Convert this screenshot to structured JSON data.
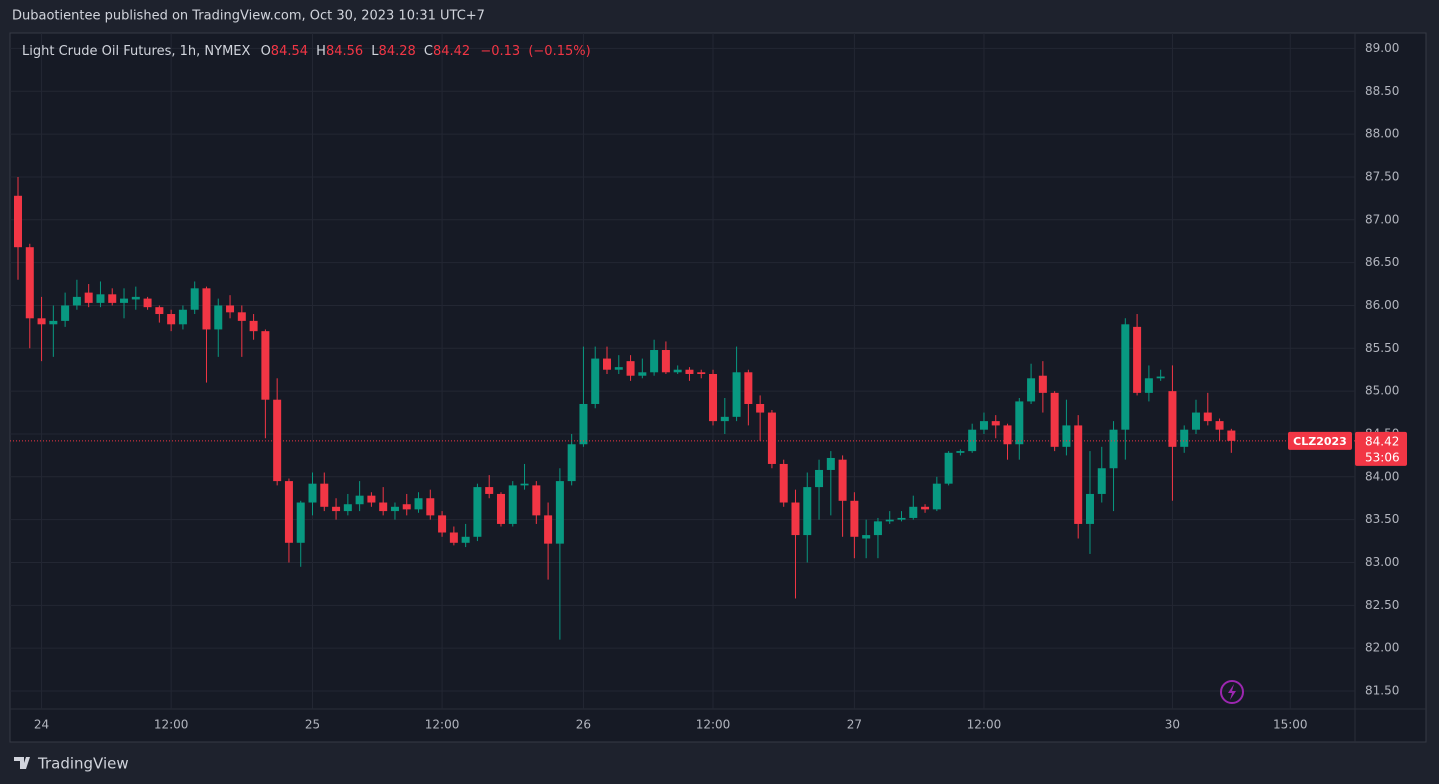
{
  "publisher_line": "Dubaotientee published on TradingView.com, Oct 30, 2023 10:31 UTC+7",
  "footer_brand": "TradingView",
  "chart_data": {
    "type": "candlestick",
    "title": "Light Crude Oil Futures, 1h, NYMEX",
    "header": {
      "open_label": "O",
      "open": 84.54,
      "high_label": "H",
      "high": 84.56,
      "low_label": "L",
      "low": 84.28,
      "close_label": "C",
      "close": 84.42,
      "change": {
        "value": -0.13,
        "label": "−0.13"
      },
      "change_pct": {
        "value": -0.15,
        "label": "(−0.15%)"
      }
    },
    "categories": [
      null,
      null,
      "24",
      null,
      null,
      null,
      null,
      null,
      null,
      null,
      null,
      null,
      null,
      "12:00",
      null,
      null,
      null,
      null,
      null,
      null,
      null,
      null,
      null,
      null,
      null,
      "25",
      null,
      null,
      null,
      null,
      null,
      null,
      null,
      null,
      null,
      null,
      "12:00",
      null,
      null,
      null,
      null,
      null,
      null,
      null,
      null,
      null,
      null,
      null,
      "26",
      null,
      null,
      null,
      null,
      null,
      null,
      null,
      null,
      null,
      null,
      "12:00",
      null,
      null,
      null,
      null,
      null,
      null,
      null,
      null,
      null,
      null,
      null,
      "27",
      null,
      null,
      null,
      null,
      null,
      null,
      null,
      null,
      null,
      null,
      "12:00",
      null,
      null,
      null,
      null,
      null,
      null,
      null,
      null,
      null,
      null,
      null,
      null,
      null,
      null,
      null,
      "30",
      null,
      null,
      null,
      null,
      null,
      null,
      null,
      null,
      null,
      "15:00"
    ],
    "open": [
      87.28,
      86.68,
      85.85,
      85.78,
      85.82,
      86.0,
      86.15,
      86.03,
      86.13,
      86.03,
      86.07,
      86.08,
      85.98,
      85.9,
      85.78,
      85.95,
      86.2,
      85.72,
      86.0,
      85.92,
      85.82,
      85.7,
      84.9,
      83.95,
      83.23,
      83.7,
      83.92,
      83.65,
      83.6,
      83.68,
      83.78,
      83.7,
      83.6,
      83.68,
      83.62,
      83.75,
      83.55,
      83.35,
      83.23,
      83.3,
      83.88,
      83.8,
      83.45,
      83.9,
      83.9,
      83.55,
      83.22,
      83.95,
      84.38,
      84.85,
      85.38,
      85.25,
      85.35,
      85.18,
      85.22,
      85.48,
      85.22,
      85.25,
      85.22,
      85.2,
      84.65,
      84.7,
      85.22,
      84.85,
      84.75,
      84.15,
      83.7,
      83.32,
      83.88,
      84.08,
      84.2,
      83.72,
      83.28,
      83.32,
      83.48,
      83.5,
      83.52,
      83.65,
      83.62,
      83.92,
      84.28,
      84.3,
      84.55,
      84.65,
      84.6,
      84.38,
      84.88,
      85.18,
      84.98,
      84.35,
      84.6,
      83.45,
      83.8,
      84.1,
      84.55,
      85.75,
      84.98,
      85.15,
      85.0,
      84.35,
      84.55,
      84.75,
      84.65,
      84.54,
      null,
      null,
      null,
      null,
      null
    ],
    "high": [
      87.5,
      86.72,
      86.1,
      86.0,
      86.15,
      86.3,
      86.25,
      86.28,
      86.2,
      86.2,
      86.22,
      86.1,
      86.0,
      85.95,
      86.0,
      86.28,
      86.22,
      86.08,
      86.12,
      86.0,
      85.9,
      85.72,
      85.15,
      83.98,
      83.72,
      84.05,
      84.05,
      83.75,
      83.8,
      83.95,
      83.82,
      83.88,
      83.7,
      83.8,
      83.82,
      83.85,
      83.6,
      83.42,
      83.45,
      83.92,
      84.02,
      83.82,
      83.95,
      84.15,
      83.95,
      83.7,
      84.1,
      84.5,
      85.52,
      85.52,
      85.52,
      85.42,
      85.42,
      85.38,
      85.6,
      85.58,
      85.3,
      85.28,
      85.25,
      85.25,
      84.92,
      85.52,
      85.25,
      84.95,
      84.78,
      84.2,
      83.85,
      84.05,
      84.2,
      84.3,
      84.25,
      83.82,
      83.5,
      83.52,
      83.6,
      83.6,
      83.78,
      83.68,
      84.0,
      84.3,
      84.32,
      84.62,
      84.75,
      84.72,
      84.62,
      84.92,
      85.32,
      85.35,
      85.0,
      84.9,
      84.72,
      84.3,
      84.35,
      84.65,
      85.85,
      85.9,
      85.3,
      85.25,
      85.3,
      84.6,
      84.9,
      84.98,
      84.68,
      84.56,
      null,
      null,
      null,
      null,
      null
    ],
    "low": [
      86.3,
      85.5,
      85.35,
      85.4,
      85.75,
      85.95,
      85.98,
      85.98,
      86.0,
      85.85,
      85.95,
      85.95,
      85.8,
      85.7,
      85.72,
      85.9,
      85.1,
      85.4,
      85.85,
      85.4,
      85.6,
      84.45,
      83.9,
      83.0,
      82.95,
      83.55,
      83.6,
      83.5,
      83.55,
      83.6,
      83.65,
      83.55,
      83.5,
      83.55,
      83.58,
      83.5,
      83.3,
      83.2,
      83.18,
      83.25,
      83.75,
      83.42,
      83.42,
      83.85,
      83.45,
      82.8,
      82.1,
      83.9,
      84.35,
      84.8,
      85.2,
      85.2,
      85.12,
      85.15,
      85.18,
      85.2,
      85.2,
      85.12,
      85.15,
      84.6,
      84.5,
      84.65,
      84.6,
      84.42,
      84.1,
      83.65,
      82.58,
      83.0,
      83.5,
      83.55,
      83.3,
      83.05,
      83.05,
      83.05,
      83.45,
      83.48,
      83.5,
      83.58,
      83.6,
      83.9,
      84.25,
      84.28,
      84.5,
      84.45,
      84.2,
      84.2,
      84.85,
      84.75,
      84.3,
      84.25,
      83.28,
      83.1,
      83.7,
      83.6,
      84.2,
      84.95,
      84.88,
      85.12,
      83.72,
      84.28,
      84.5,
      84.6,
      84.42,
      84.28,
      null,
      null,
      null,
      null,
      null
    ],
    "close": [
      86.68,
      85.85,
      85.78,
      85.82,
      86.0,
      86.1,
      86.03,
      86.13,
      86.03,
      86.08,
      86.1,
      85.98,
      85.9,
      85.78,
      85.95,
      86.2,
      85.72,
      86.0,
      85.92,
      85.82,
      85.7,
      84.9,
      83.95,
      83.23,
      83.7,
      83.92,
      83.65,
      83.6,
      83.68,
      83.78,
      83.7,
      83.6,
      83.65,
      83.62,
      83.75,
      83.55,
      83.35,
      83.23,
      83.3,
      83.88,
      83.8,
      83.45,
      83.9,
      83.92,
      83.55,
      83.22,
      83.95,
      84.38,
      84.85,
      85.38,
      85.25,
      85.28,
      85.18,
      85.22,
      85.48,
      85.22,
      85.25,
      85.2,
      85.2,
      84.65,
      84.7,
      85.22,
      84.85,
      84.75,
      84.15,
      83.7,
      83.32,
      83.88,
      84.08,
      84.22,
      83.72,
      83.3,
      83.32,
      83.48,
      83.5,
      83.52,
      83.65,
      83.62,
      83.92,
      84.28,
      84.3,
      84.55,
      84.65,
      84.6,
      84.38,
      84.88,
      85.15,
      84.98,
      84.35,
      84.6,
      83.45,
      83.8,
      84.1,
      84.55,
      85.78,
      84.98,
      85.15,
      85.17,
      84.35,
      84.55,
      84.75,
      84.65,
      84.55,
      84.42,
      null,
      null,
      null,
      null,
      null
    ],
    "up_color": "#089981",
    "down_color": "#f23645",
    "ylim": [
      81.29,
      89.18
    ],
    "yticks": [
      {
        "value": 81.5,
        "label": "81.50"
      },
      {
        "value": 82,
        "label": "82.00"
      },
      {
        "value": 82.5,
        "label": "82.50"
      },
      {
        "value": 83,
        "label": "83.00"
      },
      {
        "value": 83.5,
        "label": "83.50"
      },
      {
        "value": 84,
        "label": "84.00"
      },
      {
        "value": 84.5,
        "label": "84.50"
      },
      {
        "value": 85,
        "label": "85.00"
      },
      {
        "value": 85.5,
        "label": "85.50"
      },
      {
        "value": 86,
        "label": "86.00"
      },
      {
        "value": 86.5,
        "label": "86.50"
      },
      {
        "value": 87,
        "label": "87.00"
      },
      {
        "value": 87.5,
        "label": "87.50"
      },
      {
        "value": 88,
        "label": "88.00"
      },
      {
        "value": 88.5,
        "label": "88.50"
      },
      {
        "value": 89,
        "label": "89.00"
      }
    ],
    "grid": true,
    "last_price": 84.42,
    "symbol": "CLZ2023",
    "countdown": "53:06"
  }
}
